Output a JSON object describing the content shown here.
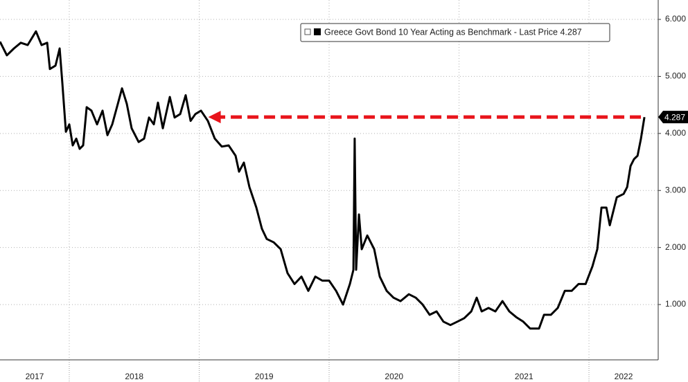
{
  "chart_data": {
    "type": "line",
    "series": [
      {
        "name": "Greece Govt Bond 10 Year Acting as Benchmark - Last Price 4.287",
        "color": "#000000",
        "x": [
          2017.467,
          2017.52,
          2017.574,
          2017.627,
          2017.68,
          2017.744,
          2017.787,
          2017.83,
          2017.851,
          2017.894,
          2017.926,
          2017.947,
          2017.974,
          2018.0,
          2018.027,
          2018.054,
          2018.08,
          2018.107,
          2018.134,
          2018.171,
          2018.214,
          2018.256,
          2018.294,
          2018.331,
          2018.374,
          2018.406,
          2018.443,
          2018.48,
          2018.534,
          2018.576,
          2018.614,
          2018.651,
          2018.683,
          2018.72,
          2018.774,
          2018.811,
          2018.854,
          2018.896,
          2018.934,
          2018.971,
          2019.014,
          2019.067,
          2019.12,
          2019.174,
          2019.227,
          2019.28,
          2019.307,
          2019.344,
          2019.387,
          2019.44,
          2019.483,
          2019.52,
          2019.574,
          2019.627,
          2019.68,
          2019.734,
          2019.787,
          2019.84,
          2019.894,
          2019.947,
          2020.0,
          2020.054,
          2020.107,
          2020.16,
          2020.187,
          2020.197,
          2020.208,
          2020.23,
          2020.251,
          2020.294,
          2020.347,
          2020.39,
          2020.443,
          2020.496,
          2020.55,
          2020.614,
          2020.667,
          2020.72,
          2020.774,
          2020.827,
          2020.88,
          2020.934,
          2020.987,
          2021.04,
          2021.094,
          2021.136,
          2021.174,
          2021.227,
          2021.28,
          2021.334,
          2021.387,
          2021.44,
          2021.494,
          2021.547,
          2021.616,
          2021.654,
          2021.707,
          2021.76,
          2021.814,
          2021.867,
          2021.92,
          2021.974,
          2022.027,
          2022.064,
          2022.096,
          2022.134,
          2022.16,
          2022.214,
          2022.267,
          2022.294,
          2022.32,
          2022.347,
          2022.374,
          2022.4,
          2022.427
        ],
        "values": [
          5.61,
          5.37,
          5.49,
          5.59,
          5.55,
          5.79,
          5.55,
          5.59,
          5.13,
          5.19,
          5.49,
          4.88,
          4.03,
          4.16,
          3.79,
          3.91,
          3.73,
          3.79,
          4.46,
          4.4,
          4.16,
          4.4,
          3.97,
          4.16,
          4.52,
          4.79,
          4.52,
          4.09,
          3.85,
          3.91,
          4.28,
          4.16,
          4.54,
          4.09,
          4.64,
          4.28,
          4.34,
          4.67,
          4.22,
          4.34,
          4.4,
          4.22,
          3.91,
          3.77,
          3.79,
          3.61,
          3.33,
          3.49,
          3.06,
          2.7,
          2.33,
          2.15,
          2.09,
          1.97,
          1.55,
          1.36,
          1.49,
          1.24,
          1.49,
          1.42,
          1.42,
          1.24,
          1.0,
          1.36,
          1.61,
          3.91,
          1.61,
          2.58,
          1.97,
          2.21,
          1.97,
          1.49,
          1.24,
          1.12,
          1.06,
          1.18,
          1.12,
          1.0,
          0.82,
          0.88,
          0.7,
          0.64,
          0.7,
          0.76,
          0.88,
          1.12,
          0.88,
          0.94,
          0.88,
          1.06,
          0.88,
          0.78,
          0.7,
          0.58,
          0.58,
          0.82,
          0.82,
          0.94,
          1.24,
          1.24,
          1.36,
          1.36,
          1.67,
          1.97,
          2.7,
          2.7,
          2.39,
          2.88,
          2.94,
          3.06,
          3.43,
          3.55,
          3.61,
          3.91,
          4.287
        ]
      }
    ],
    "last_price": 4.287,
    "annotations": [
      {
        "type": "arrow",
        "x_start": 2022.4,
        "x_end": 2019.07,
        "y": 4.287,
        "color": "#e8141b"
      }
    ],
    "xlim": [
      2017.467,
      2022.533
    ],
    "xticks": [
      2017,
      2018,
      2019,
      2020,
      2021,
      2022
    ],
    "ylim": [
      0.03,
      6.34
    ],
    "yticks": [
      {
        "value": 1,
        "label": "1.000"
      },
      {
        "value": 2,
        "label": "2.000"
      },
      {
        "value": 3,
        "label": "3.000"
      },
      {
        "value": 4,
        "label": "4.000"
      },
      {
        "value": 5,
        "label": "5.000"
      },
      {
        "value": 6,
        "label": "6.000"
      }
    ],
    "grid": true
  }
}
